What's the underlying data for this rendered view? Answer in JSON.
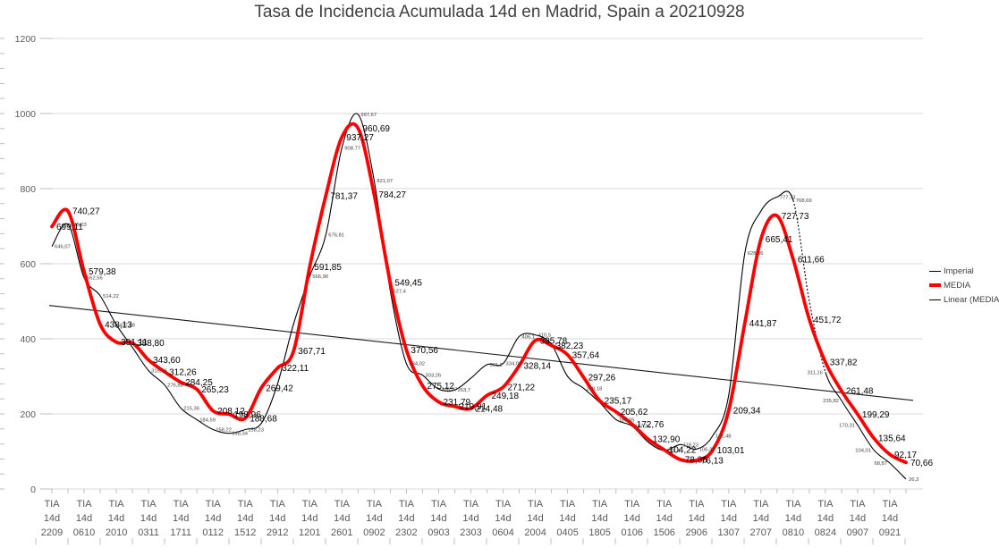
{
  "title": "Tasa de Incidencia Acumulada 14d en Madrid, Spain a 20210928",
  "colors": {
    "media": "#FF0000",
    "imperial": "#000000",
    "trend": "#1a1a1a",
    "grid": "#D9D9D9",
    "tick": "#BFBFBF",
    "axis_text": "#595959",
    "title_text": "#404040",
    "label_text": "#000000",
    "small_label_text": "#404040"
  },
  "legend": {
    "items": [
      {
        "label": "Imperial",
        "color": "#000000",
        "thick": false
      },
      {
        "label": "MEDIA",
        "color": "#FF0000",
        "thick": true
      },
      {
        "label": "Linear (MEDIA)",
        "color": "#000000",
        "thick": false
      }
    ]
  },
  "chart_data": {
    "type": "line",
    "title": "Tasa de Incidencia Acumulada 14d en Madrid, Spain a 20210928",
    "grid": true,
    "legend_position": "right",
    "y_axis": {
      "min": 0,
      "max": 1200,
      "step": 200,
      "minor_step": 40,
      "ticks": [
        "0",
        "200",
        "400",
        "600",
        "800",
        "1000",
        "1200"
      ]
    },
    "x_tick_prefix_lines": [
      "TIA",
      "14d"
    ],
    "categories": [
      "2209",
      "0610",
      "2010",
      "0311",
      "1711",
      "0112",
      "1512",
      "2912",
      "1201",
      "2601",
      "0902",
      "2302",
      "0903",
      "2303",
      "0604",
      "2004",
      "0405",
      "1805",
      "0106",
      "1506",
      "2906",
      "1307",
      "2707",
      "0810",
      "0824",
      "0907",
      "0921"
    ],
    "series": [
      {
        "name": "Imperial",
        "style": "thin",
        "dashed_segment": [
          46,
          48
        ],
        "points": [
          {
            "v": 646.07,
            "label": "646,07"
          },
          {
            "v": 705.03,
            "label": "705,03"
          },
          {
            "v": 562.56,
            "label": "562,56"
          },
          {
            "v": 514.22,
            "label": "514,22"
          },
          {
            "v": 437.28,
            "label": "437,28"
          },
          {
            "v": 376.88
          },
          {
            "v": 315.16,
            "label": "315,16"
          },
          {
            "v": 276.88,
            "label": "276,88"
          },
          {
            "v": 215.36,
            "label": "215,36"
          },
          {
            "v": 184.59,
            "label": "184,59"
          },
          {
            "v": 158.22,
            "label": "158,22"
          },
          {
            "v": 148.34,
            "label": "148,34"
          },
          {
            "v": 158.23,
            "label": "158,23"
          },
          {
            "v": 175
          },
          {
            "v": 280
          },
          {
            "v": 440
          },
          {
            "v": 566.96,
            "label": "566,96"
          },
          {
            "v": 676.81,
            "label": "676,81"
          },
          {
            "v": 908.77,
            "label": "908,77"
          },
          {
            "v": 997.67,
            "label": "997,67"
          },
          {
            "v": 821.07,
            "label": "821,07"
          },
          {
            "v": 527.4,
            "label": "527,4"
          },
          {
            "v": 334.02,
            "label": "334,02"
          },
          {
            "v": 303.26,
            "label": "303,26"
          },
          {
            "v": 266.07,
            "label": "266,07"
          },
          {
            "v": 263.7,
            "label": "263,7"
          },
          {
            "v": 295
          },
          {
            "v": 331.2,
            "label": "331,2"
          },
          {
            "v": 334.02,
            "label": "334,02"
          },
          {
            "v": 406.1,
            "label": "406,1"
          },
          {
            "v": 410.5,
            "label": "410,5"
          },
          {
            "v": 385
          },
          {
            "v": 300
          },
          {
            "v": 268.18,
            "label": "268,18"
          },
          {
            "v": 230
          },
          {
            "v": 185.05,
            "label": "185,05"
          },
          {
            "v": 167.31,
            "label": "167,31"
          },
          {
            "v": 125
          },
          {
            "v": 102.4,
            "label": "102,4"
          },
          {
            "v": 118.23,
            "label": "118,23"
          },
          {
            "v": 106.38,
            "label": "106,38"
          },
          {
            "v": 141.48,
            "label": "141,48"
          },
          {
            "v": 250
          },
          {
            "v": 628.06,
            "label": "628,06"
          },
          {
            "v": 740
          },
          {
            "v": 777.73,
            "label": "777,73"
          },
          {
            "v": 768.69,
            "label": "768,69"
          },
          {
            "v": 500
          },
          {
            "v": 311.16,
            "label": "311,16",
            "side": "left"
          },
          {
            "v": 235.82,
            "label": "235,82",
            "side": "left"
          },
          {
            "v": 170.31,
            "label": "170,31",
            "side": "left"
          },
          {
            "v": 104.01,
            "label": "104,01",
            "side": "left"
          },
          {
            "v": 68.87,
            "label": "68,87",
            "side": "left"
          },
          {
            "v": 26.3,
            "label": "26,3"
          }
        ]
      },
      {
        "name": "MEDIA",
        "style": "thick",
        "points": [
          {
            "v": 699.11,
            "label": "699,11"
          },
          {
            "v": 740.27,
            "label": "740,27"
          },
          {
            "v": 579.38,
            "label": "579,38"
          },
          {
            "v": 438.13,
            "label": "438,13"
          },
          {
            "v": 391.11,
            "label": "391,11"
          },
          {
            "v": 388.8,
            "label": "388,80"
          },
          {
            "v": 343.6,
            "label": "343,60"
          },
          {
            "v": 312.26,
            "label": "312,26"
          },
          {
            "v": 284.25,
            "label": "284,25"
          },
          {
            "v": 265.23,
            "label": "265,23"
          },
          {
            "v": 208.12,
            "label": "208,12"
          },
          {
            "v": 198.96,
            "label": "198,96"
          },
          {
            "v": 188.68,
            "label": "188,68"
          },
          {
            "v": 269.42,
            "label": "269,42"
          },
          {
            "v": 322.11,
            "label": "322,11"
          },
          {
            "v": 367.71,
            "label": "367,71"
          },
          {
            "v": 591.85,
            "label": "591,85"
          },
          {
            "v": 781.37,
            "label": "781,37"
          },
          {
            "v": 937.27,
            "label": "937,27"
          },
          {
            "v": 960.69,
            "label": "960,69"
          },
          {
            "v": 784.27,
            "label": "784,27"
          },
          {
            "v": 549.45,
            "label": "549,45"
          },
          {
            "v": 370.56,
            "label": "370,56"
          },
          {
            "v": 275.12,
            "label": "275,12"
          },
          {
            "v": 231.79,
            "label": "231,79"
          },
          {
            "v": 219.91,
            "label": "219,91"
          },
          {
            "v": 214.48,
            "label": "214,48"
          },
          {
            "v": 249.18,
            "label": "249,18"
          },
          {
            "v": 271.22,
            "label": "271,22"
          },
          {
            "v": 328.14,
            "label": "328,14"
          },
          {
            "v": 395.78,
            "label": "395,78"
          },
          {
            "v": 382.23,
            "label": "382,23"
          },
          {
            "v": 357.64,
            "label": "357,64"
          },
          {
            "v": 297.26,
            "label": "297,26"
          },
          {
            "v": 235.17,
            "label": "235,17"
          },
          {
            "v": 205.62,
            "label": "205,62"
          },
          {
            "v": 172.76,
            "label": "172,76"
          },
          {
            "v": 132.9,
            "label": "132,90"
          },
          {
            "v": 104.22,
            "label": "104,22"
          },
          {
            "v": 78.36,
            "label": "78,36"
          },
          {
            "v": 76.13,
            "label": "76,13"
          },
          {
            "v": 103.01,
            "label": "103,01"
          },
          {
            "v": 209.34,
            "label": "209,34"
          },
          {
            "v": 441.87,
            "label": "441,87"
          },
          {
            "v": 665.41,
            "label": "665,41"
          },
          {
            "v": 727.73,
            "label": "727,73"
          },
          {
            "v": 611.66,
            "label": "611,66"
          },
          {
            "v": 451.72,
            "label": "451,72"
          },
          {
            "v": 337.82,
            "label": "337,82"
          },
          {
            "v": 261.48,
            "label": "261,48"
          },
          {
            "v": 199.29,
            "label": "199,29"
          },
          {
            "v": 135.64,
            "label": "135,64"
          },
          {
            "v": 92.17,
            "label": "92,17"
          },
          {
            "v": 70.66,
            "label": "70,66"
          }
        ]
      },
      {
        "name": "Linear (MEDIA)",
        "style": "trend",
        "start_value": 488,
        "end_value": 238
      }
    ]
  }
}
